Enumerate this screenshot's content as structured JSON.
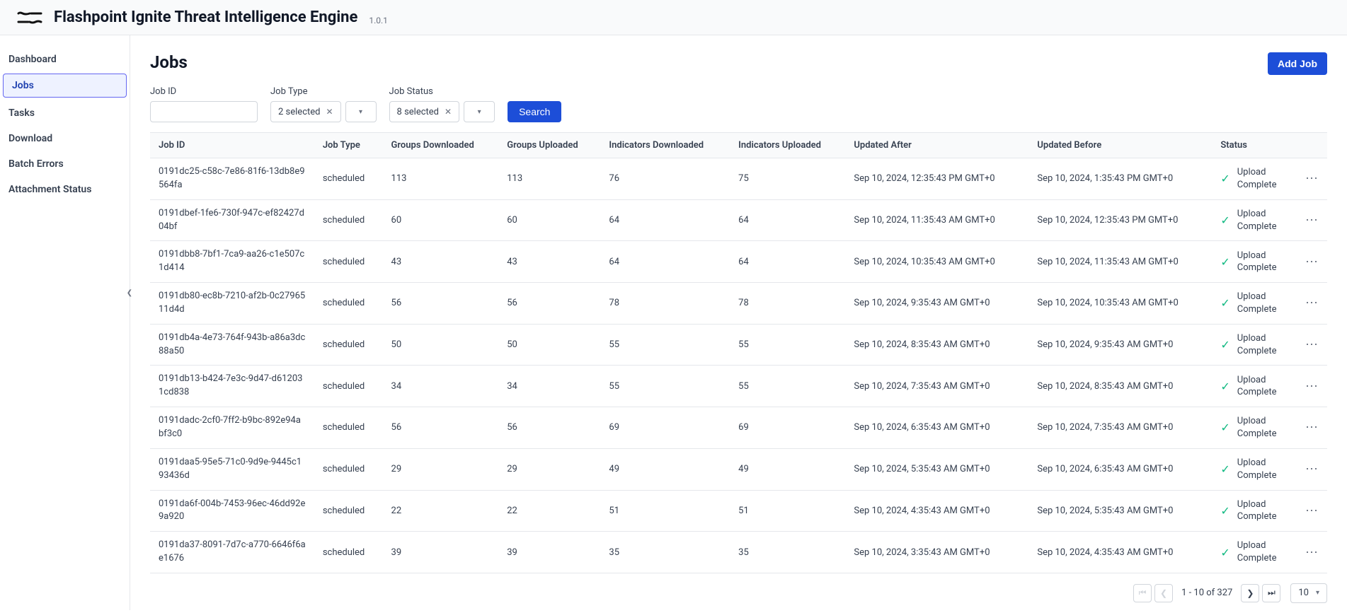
{
  "header": {
    "app_title": "Flashpoint Ignite Threat Intelligence Engine",
    "version": "1.0.1"
  },
  "sidebar": {
    "items": [
      {
        "label": "Dashboard",
        "active": false
      },
      {
        "label": "Jobs",
        "active": true
      },
      {
        "label": "Tasks",
        "active": false
      },
      {
        "label": "Download",
        "active": false
      },
      {
        "label": "Batch Errors",
        "active": false
      },
      {
        "label": "Attachment Status",
        "active": false
      }
    ]
  },
  "page": {
    "title": "Jobs",
    "add_button": "Add Job"
  },
  "filters": {
    "job_id": {
      "label": "Job ID",
      "value": ""
    },
    "job_type": {
      "label": "Job Type",
      "selected_text": "2 selected"
    },
    "job_status": {
      "label": "Job Status",
      "selected_text": "8 selected"
    },
    "search_button": "Search"
  },
  "table": {
    "columns": [
      "Job ID",
      "Job Type",
      "Groups Downloaded",
      "Groups Uploaded",
      "Indicators Downloaded",
      "Indicators Uploaded",
      "Updated After",
      "Updated Before",
      "Status"
    ],
    "status_label": "Upload Complete",
    "rows": [
      {
        "id": "0191dc25-c58c-7e86-81f6-13db8e9564fa",
        "type": "scheduled",
        "gd": "113",
        "gu": "113",
        "idn": "76",
        "iup": "75",
        "ua": "Sep 10, 2024, 12:35:43 PM GMT+0",
        "ub": "Sep 10, 2024, 1:35:43 PM GMT+0"
      },
      {
        "id": "0191dbef-1fe6-730f-947c-ef82427d04bf",
        "type": "scheduled",
        "gd": "60",
        "gu": "60",
        "idn": "64",
        "iup": "64",
        "ua": "Sep 10, 2024, 11:35:43 AM GMT+0",
        "ub": "Sep 10, 2024, 12:35:43 PM GMT+0"
      },
      {
        "id": "0191dbb8-7bf1-7ca9-aa26-c1e507c1d414",
        "type": "scheduled",
        "gd": "43",
        "gu": "43",
        "idn": "64",
        "iup": "64",
        "ua": "Sep 10, 2024, 10:35:43 AM GMT+0",
        "ub": "Sep 10, 2024, 11:35:43 AM GMT+0"
      },
      {
        "id": "0191db80-ec8b-7210-af2b-0c2796511d4d",
        "type": "scheduled",
        "gd": "56",
        "gu": "56",
        "idn": "78",
        "iup": "78",
        "ua": "Sep 10, 2024, 9:35:43 AM GMT+0",
        "ub": "Sep 10, 2024, 10:35:43 AM GMT+0"
      },
      {
        "id": "0191db4a-4e73-764f-943b-a86a3dc88a50",
        "type": "scheduled",
        "gd": "50",
        "gu": "50",
        "idn": "55",
        "iup": "55",
        "ua": "Sep 10, 2024, 8:35:43 AM GMT+0",
        "ub": "Sep 10, 2024, 9:35:43 AM GMT+0"
      },
      {
        "id": "0191db13-b424-7e3c-9d47-d612031cd838",
        "type": "scheduled",
        "gd": "34",
        "gu": "34",
        "idn": "55",
        "iup": "55",
        "ua": "Sep 10, 2024, 7:35:43 AM GMT+0",
        "ub": "Sep 10, 2024, 8:35:43 AM GMT+0"
      },
      {
        "id": "0191dadc-2cf0-7ff2-b9bc-892e94abf3c0",
        "type": "scheduled",
        "gd": "56",
        "gu": "56",
        "idn": "69",
        "iup": "69",
        "ua": "Sep 10, 2024, 6:35:43 AM GMT+0",
        "ub": "Sep 10, 2024, 7:35:43 AM GMT+0"
      },
      {
        "id": "0191daa5-95e5-71c0-9d9e-9445c193436d",
        "type": "scheduled",
        "gd": "29",
        "gu": "29",
        "idn": "49",
        "iup": "49",
        "ua": "Sep 10, 2024, 5:35:43 AM GMT+0",
        "ub": "Sep 10, 2024, 6:35:43 AM GMT+0"
      },
      {
        "id": "0191da6f-004b-7453-96ec-46dd92e9a920",
        "type": "scheduled",
        "gd": "22",
        "gu": "22",
        "idn": "51",
        "iup": "51",
        "ua": "Sep 10, 2024, 4:35:43 AM GMT+0",
        "ub": "Sep 10, 2024, 5:35:43 AM GMT+0"
      },
      {
        "id": "0191da37-8091-7d7c-a770-6646f6ae1676",
        "type": "scheduled",
        "gd": "39",
        "gu": "39",
        "idn": "35",
        "iup": "35",
        "ua": "Sep 10, 2024, 3:35:43 AM GMT+0",
        "ub": "Sep 10, 2024, 4:35:43 AM GMT+0"
      }
    ]
  },
  "pagination": {
    "range": "1 - 10 of 327",
    "page_size": "10"
  },
  "colors": {
    "primary": "#1d4ed8",
    "border": "#e5e7eb",
    "header_bg": "#f9fafb",
    "text": "#374151",
    "success": "#10b981",
    "active_bg": "#eef2ff",
    "active_border": "#6366f1"
  }
}
